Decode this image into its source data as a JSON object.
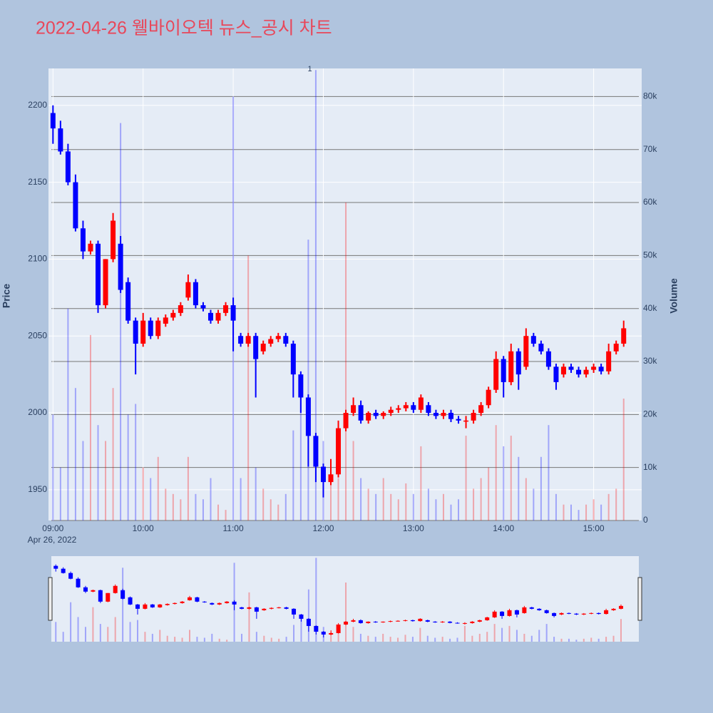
{
  "chart_data": {
    "type": "candlestick",
    "title": "2022-04-26 웰바이오텍 뉴스_공시 차트",
    "y_title": "Price",
    "y2_title": "Volume",
    "x_date_label": "Apr 26, 2022",
    "x": [
      "09:00",
      "09:05",
      "09:10",
      "09:15",
      "09:20",
      "09:25",
      "09:30",
      "09:35",
      "09:40",
      "09:45",
      "09:50",
      "09:55",
      "10:00",
      "10:05",
      "10:10",
      "10:15",
      "10:20",
      "10:25",
      "10:30",
      "10:35",
      "10:40",
      "10:45",
      "10:50",
      "10:55",
      "11:00",
      "11:05",
      "11:10",
      "11:15",
      "11:20",
      "11:25",
      "11:30",
      "11:35",
      "11:40",
      "11:45",
      "11:50",
      "11:55",
      "12:00",
      "12:05",
      "12:10",
      "12:15",
      "12:20",
      "12:25",
      "12:30",
      "12:35",
      "12:40",
      "12:45",
      "12:50",
      "12:55",
      "13:00",
      "13:05",
      "13:10",
      "13:15",
      "13:20",
      "13:25",
      "13:30",
      "13:35",
      "13:40",
      "13:45",
      "13:50",
      "13:55",
      "14:00",
      "14:05",
      "14:10",
      "14:15",
      "14:20",
      "14:25",
      "14:30",
      "14:35",
      "14:40",
      "14:45",
      "14:50",
      "14:55",
      "15:00",
      "15:05",
      "15:10",
      "15:15",
      "15:20"
    ],
    "open": [
      2195,
      2185,
      2170,
      2150,
      2120,
      2105,
      2110,
      2070,
      2100,
      2110,
      2085,
      2060,
      2045,
      2060,
      2050,
      2058,
      2062,
      2065,
      2075,
      2085,
      2070,
      2065,
      2060,
      2065,
      2070,
      2050,
      2045,
      2050,
      2040,
      2045,
      2048,
      2050,
      2045,
      2025,
      2010,
      1985,
      1965,
      1955,
      1960,
      1990,
      2000,
      2005,
      1995,
      2000,
      1998,
      2000,
      2002,
      2003,
      2005,
      2002,
      2005,
      2000,
      1998,
      2000,
      1996,
      1995,
      1995,
      2000,
      2005,
      2015,
      2035,
      2020,
      2040,
      2030,
      2050,
      2045,
      2040,
      2030,
      2025,
      2030,
      2028,
      2025,
      2028,
      2030,
      2027,
      2040,
      2045
    ],
    "high": [
      2200,
      2190,
      2175,
      2155,
      2125,
      2112,
      2112,
      2100,
      2130,
      2115,
      2088,
      2062,
      2065,
      2062,
      2062,
      2064,
      2067,
      2072,
      2090,
      2087,
      2072,
      2067,
      2067,
      2072,
      2075,
      2052,
      2052,
      2052,
      2047,
      2050,
      2052,
      2052,
      2047,
      2027,
      2012,
      1987,
      1967,
      1970,
      1995,
      2002,
      2010,
      2008,
      2001,
      2002,
      2001,
      2004,
      2005,
      2007,
      2007,
      2012,
      2007,
      2002,
      2002,
      2002,
      1998,
      1998,
      2002,
      2007,
      2017,
      2040,
      2037,
      2045,
      2042,
      2055,
      2052,
      2047,
      2042,
      2032,
      2032,
      2032,
      2030,
      2030,
      2032,
      2032,
      2045,
      2047,
      2060
    ],
    "low": [
      2175,
      2168,
      2148,
      2118,
      2100,
      2103,
      2065,
      2068,
      2098,
      2078,
      2058,
      2025,
      2043,
      2048,
      2048,
      2056,
      2060,
      2063,
      2073,
      2068,
      2066,
      2058,
      2058,
      2063,
      2040,
      2043,
      2043,
      2010,
      2038,
      2043,
      2046,
      2043,
      2010,
      2000,
      1965,
      1955,
      1945,
      1953,
      1958,
      1988,
      1998,
      1993,
      1993,
      1996,
      1996,
      1998,
      2000,
      2001,
      2000,
      2000,
      1998,
      1996,
      1996,
      1994,
      1993,
      1990,
      1993,
      1998,
      2003,
      2013,
      2010,
      2018,
      2015,
      2028,
      2043,
      2038,
      2028,
      2015,
      2023,
      2026,
      2023,
      2023,
      2026,
      2025,
      2025,
      2038,
      2043
    ],
    "close": [
      2185,
      2170,
      2150,
      2120,
      2105,
      2110,
      2070,
      2100,
      2125,
      2080,
      2060,
      2045,
      2060,
      2050,
      2060,
      2062,
      2065,
      2070,
      2085,
      2070,
      2068,
      2060,
      2065,
      2070,
      2060,
      2045,
      2050,
      2035,
      2045,
      2048,
      2050,
      2045,
      2025,
      2010,
      1985,
      1965,
      1955,
      1960,
      1990,
      2000,
      2005,
      1995,
      2000,
      1998,
      2000,
      2002,
      2003,
      2005,
      2002,
      2010,
      2000,
      1998,
      2000,
      1996,
      1995,
      1995,
      2000,
      2005,
      2015,
      2035,
      2020,
      2040,
      2025,
      2050,
      2045,
      2040,
      2030,
      2020,
      2030,
      2028,
      2025,
      2028,
      2030,
      2027,
      2040,
      2045,
      2055
    ],
    "volume": [
      20000,
      10000,
      40000,
      25000,
      15000,
      35000,
      18000,
      15000,
      25000,
      75000,
      20000,
      22000,
      10000,
      8000,
      12000,
      6000,
      5000,
      4000,
      12000,
      5000,
      4000,
      8000,
      3000,
      2000,
      80000,
      8000,
      50000,
      10000,
      6000,
      4000,
      3000,
      5000,
      17000,
      25000,
      53000,
      85000,
      15000,
      10000,
      8000,
      60000,
      15000,
      8000,
      6000,
      5000,
      8000,
      5000,
      4000,
      7000,
      5000,
      14000,
      6000,
      4000,
      5000,
      3000,
      4000,
      16000,
      6000,
      8000,
      10000,
      18000,
      14000,
      16000,
      12000,
      8000,
      6000,
      12000,
      18000,
      5000,
      3000,
      3000,
      2000,
      3000,
      4000,
      3000,
      5000,
      6000,
      23000
    ],
    "increasing_color": "#ff0000",
    "decreasing_color": "#0000ff",
    "xlim": [
      "08:57",
      "15:32"
    ],
    "xticks": [
      "09:00",
      "10:00",
      "11:00",
      "12:00",
      "13:00",
      "14:00",
      "15:00"
    ],
    "ylim": [
      1930,
      2224
    ],
    "yticks": [
      1950,
      2000,
      2050,
      2100,
      2150,
      2200
    ],
    "y2lim": [
      0,
      85300
    ],
    "y2ticks": [
      0,
      {
        "value": 10000,
        "label": "10k"
      },
      {
        "value": 20000,
        "label": "20k"
      },
      {
        "value": 30000,
        "label": "30k"
      },
      {
        "value": 40000,
        "label": "40k"
      },
      {
        "value": 50000,
        "label": "50k"
      },
      {
        "value": 60000,
        "label": "60k"
      },
      {
        "value": 70000,
        "label": "70k"
      },
      {
        "value": 80000,
        "label": "80k"
      }
    ],
    "annotations": [
      {
        "x": "11:51",
        "text": "1"
      }
    ],
    "grid": true,
    "rangeslider": true
  }
}
